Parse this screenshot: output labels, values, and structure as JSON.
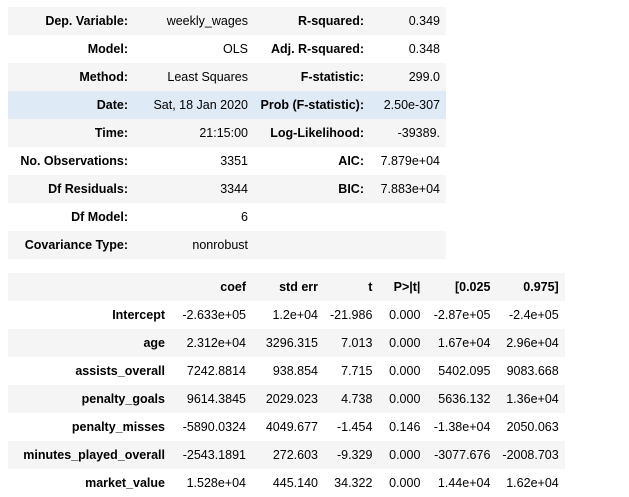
{
  "summary": {
    "rows": [
      {
        "l1": "Dep. Variable:",
        "v1": "weekly_wages",
        "l2": "R-squared:",
        "v2": "0.349"
      },
      {
        "l1": "Model:",
        "v1": "OLS",
        "l2": "Adj. R-squared:",
        "v2": "0.348"
      },
      {
        "l1": "Method:",
        "v1": "Least Squares",
        "l2": "F-statistic:",
        "v2": "299.0"
      },
      {
        "l1": "Date:",
        "v1": "Sat, 18 Jan 2020",
        "l2": "Prob (F-statistic):",
        "v2": "2.50e-307"
      },
      {
        "l1": "Time:",
        "v1": "21:15:00",
        "l2": "Log-Likelihood:",
        "v2": "-39389."
      },
      {
        "l1": "No. Observations:",
        "v1": "3351",
        "l2": "AIC:",
        "v2": "7.879e+04"
      },
      {
        "l1": "Df Residuals:",
        "v1": "3344",
        "l2": "BIC:",
        "v2": "7.883e+04"
      },
      {
        "l1": "Df Model:",
        "v1": "6",
        "l2": "",
        "v2": ""
      },
      {
        "l1": "Covariance Type:",
        "v1": "nonrobust",
        "l2": "",
        "v2": ""
      }
    ]
  },
  "coef_table": {
    "headers": [
      "",
      "coef",
      "std err",
      "t",
      "P>|t|",
      "[0.025",
      "0.975]"
    ],
    "rows": [
      [
        "Intercept",
        "-2.633e+05",
        "1.2e+04",
        "-21.986",
        "0.000",
        "-2.87e+05",
        "-2.4e+05"
      ],
      [
        "age",
        "2.312e+04",
        "3296.315",
        "7.013",
        "0.000",
        "1.67e+04",
        "2.96e+04"
      ],
      [
        "assists_overall",
        "7242.8814",
        "938.854",
        "7.715",
        "0.000",
        "5402.095",
        "9083.668"
      ],
      [
        "penalty_goals",
        "9614.3845",
        "2029.023",
        "4.738",
        "0.000",
        "5636.132",
        "1.36e+04"
      ],
      [
        "penalty_misses",
        "-5890.0324",
        "4049.677",
        "-1.454",
        "0.146",
        "-1.38e+04",
        "2050.063"
      ],
      [
        "minutes_played_overall",
        "-2543.1891",
        "272.603",
        "-9.329",
        "0.000",
        "-3077.676",
        "-2008.703"
      ],
      [
        "market_value",
        "1.528e+04",
        "445.140",
        "34.322",
        "0.000",
        "1.44e+04",
        "1.62e+04"
      ]
    ]
  }
}
